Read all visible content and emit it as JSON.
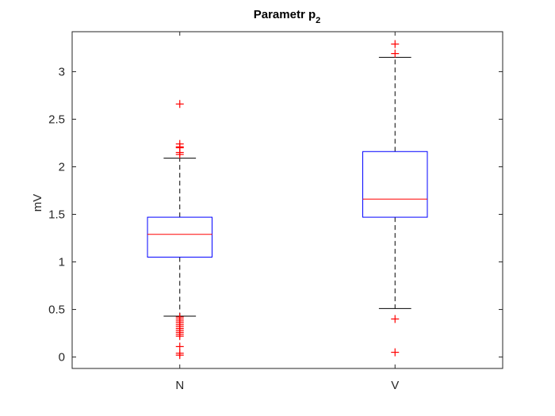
{
  "chart_data": {
    "type": "box",
    "title": {
      "main": "Parametr p",
      "subscript": "2"
    },
    "xlabel": "",
    "ylabel": "mV",
    "ylim": [
      -0.12,
      3.42
    ],
    "yticks": [
      0,
      0.5,
      1,
      1.5,
      2,
      2.5,
      3
    ],
    "ytick_labels": [
      "0",
      "0.5",
      "1",
      "1.5",
      "2",
      "2.5",
      "3"
    ],
    "categories": [
      "N",
      "V"
    ],
    "grid": false,
    "colors": {
      "box": "#0000ff",
      "median": "#ff0000",
      "whisker": "#000000",
      "outlier": "#ff0000",
      "axes": "#262626"
    },
    "boxes": [
      {
        "category": "N",
        "whisker_low": 0.43,
        "q1": 1.05,
        "median": 1.29,
        "q3": 1.47,
        "whisker_high": 2.09,
        "outliers": [
          2.66,
          2.24,
          2.21,
          2.2,
          2.15,
          2.13,
          0.42,
          0.4,
          0.38,
          0.36,
          0.34,
          0.32,
          0.3,
          0.28,
          0.26,
          0.24,
          0.22,
          0.11,
          0.04,
          0.02
        ]
      },
      {
        "category": "V",
        "whisker_low": 0.51,
        "q1": 1.47,
        "median": 1.66,
        "q3": 2.16,
        "whisker_high": 3.15,
        "outliers": [
          3.29,
          3.19,
          0.4,
          0.05
        ]
      }
    ]
  }
}
